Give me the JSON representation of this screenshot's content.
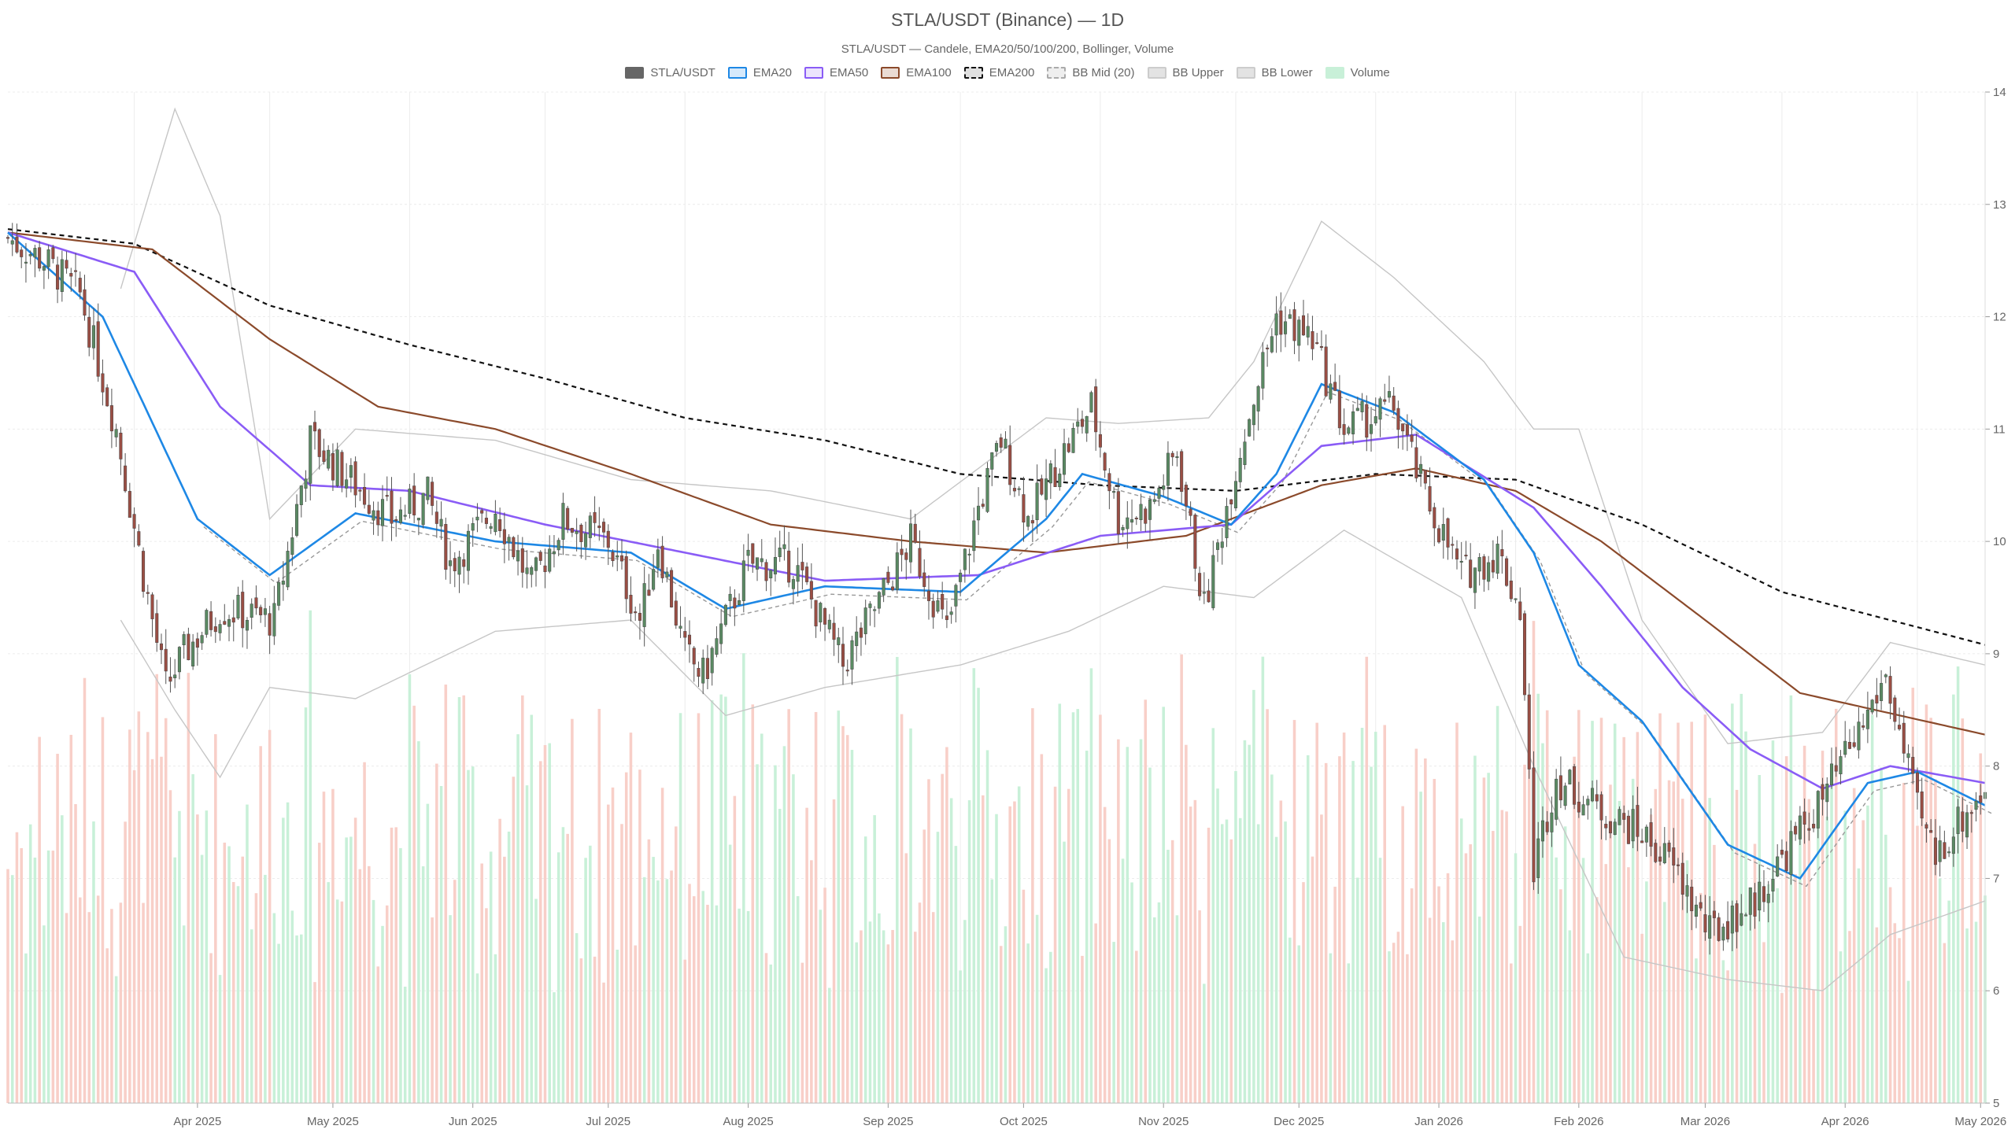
{
  "chart_data": {
    "type": "candlestick",
    "title": "STLA/USDT (Binance) — 1D",
    "subtitle": "STLA/USDT — Candele, EMA20/50/100/200, Bollinger, Volume",
    "legend": [
      {
        "name": "STLA/USDT",
        "color": "#666666",
        "fill": "#666666",
        "style": "solid"
      },
      {
        "name": "EMA20",
        "color": "#1e88e5",
        "fill": "#d6e9fb",
        "style": "solid"
      },
      {
        "name": "EMA50",
        "color": "#8a5cf6",
        "fill": "#ece4fd",
        "style": "solid"
      },
      {
        "name": "EMA100",
        "color": "#8b4a2b",
        "fill": "#eadbd3",
        "style": "solid"
      },
      {
        "name": "EMA200",
        "color": "#111111",
        "fill": "#e0e0e0",
        "style": "dashed"
      },
      {
        "name": "BB Mid (20)",
        "color": "#aaaaaa",
        "fill": "#eeeeee",
        "style": "dashed"
      },
      {
        "name": "BB Upper",
        "color": "#cccccc",
        "fill": "#e3e3e3",
        "style": "solid"
      },
      {
        "name": "BB Lower",
        "color": "#cccccc",
        "fill": "#e3e3e3",
        "style": "solid"
      },
      {
        "name": "Volume",
        "color": "#c8f0d8",
        "fill": "#c8f0d8",
        "style": "solid"
      }
    ],
    "x_ticks": [
      "Apr 2025",
      "May 2025",
      "Jun 2025",
      "Jul 2025",
      "Aug 2025",
      "Sep 2025",
      "Oct 2025",
      "Nov 2025",
      "Dec 2025",
      "Jan 2026",
      "Feb 2026",
      "Mar 2026",
      "Apr 2026",
      "May 2026"
    ],
    "y_ticks": [
      5,
      6,
      7,
      8,
      9,
      10,
      11,
      12,
      13,
      14
    ],
    "ylim": [
      5,
      14
    ],
    "grid": true,
    "legend_position": "top-center",
    "up_color": "#5a8a63",
    "down_color": "#9a4e44",
    "volume_up_color": "#c8f0d8",
    "volume_down_color": "#f8cfc8",
    "date_range": [
      "2025-03-04",
      "2026-05-16"
    ],
    "close_keypoints": [
      [
        "2025-03-04",
        12.7
      ],
      [
        "2025-03-12",
        12.5
      ],
      [
        "2025-03-20",
        12.2
      ],
      [
        "2025-03-28",
        11.0
      ],
      [
        "2025-04-03",
        9.7
      ],
      [
        "2025-04-08",
        8.7
      ],
      [
        "2025-04-12",
        9.0
      ],
      [
        "2025-04-20",
        9.4
      ],
      [
        "2025-05-02",
        9.3
      ],
      [
        "2025-05-10",
        10.9
      ],
      [
        "2025-05-20",
        10.5
      ],
      [
        "2025-05-28",
        10.2
      ],
      [
        "2025-06-05",
        10.4
      ],
      [
        "2025-06-10",
        9.8
      ],
      [
        "2025-06-20",
        10.3
      ],
      [
        "2025-06-28",
        9.6
      ],
      [
        "2025-07-05",
        10.2
      ],
      [
        "2025-07-15",
        10.0
      ],
      [
        "2025-07-22",
        9.3
      ],
      [
        "2025-07-26",
        10.0
      ],
      [
        "2025-08-01",
        9.0
      ],
      [
        "2025-08-05",
        8.8
      ],
      [
        "2025-08-15",
        9.8
      ],
      [
        "2025-08-25",
        9.8
      ],
      [
        "2025-09-05",
        8.9
      ],
      [
        "2025-09-12",
        9.4
      ],
      [
        "2025-09-20",
        10.0
      ],
      [
        "2025-09-28",
        9.2
      ],
      [
        "2025-10-05",
        10.3
      ],
      [
        "2025-10-10",
        10.9
      ],
      [
        "2025-10-16",
        10.2
      ],
      [
        "2025-10-24",
        10.8
      ],
      [
        "2025-10-30",
        11.2
      ],
      [
        "2025-11-05",
        10.2
      ],
      [
        "2025-11-12",
        10.3
      ],
      [
        "2025-11-18",
        10.8
      ],
      [
        "2025-11-24",
        9.4
      ],
      [
        "2025-11-30",
        10.5
      ],
      [
        "2025-12-05",
        11.3
      ],
      [
        "2025-12-10",
        12.0
      ],
      [
        "2025-12-18",
        11.8
      ],
      [
        "2025-12-25",
        11.0
      ],
      [
        "2026-01-05",
        11.2
      ],
      [
        "2026-01-12",
        10.4
      ],
      [
        "2026-01-20",
        9.7
      ],
      [
        "2026-01-28",
        9.9
      ],
      [
        "2026-02-02",
        9.4
      ],
      [
        "2026-02-05",
        7.1
      ],
      [
        "2026-02-10",
        7.9
      ],
      [
        "2026-02-20",
        7.6
      ],
      [
        "2026-03-01",
        7.4
      ],
      [
        "2026-03-08",
        7.1
      ],
      [
        "2026-03-16",
        6.5
      ],
      [
        "2026-03-26",
        6.8
      ],
      [
        "2026-04-03",
        7.3
      ],
      [
        "2026-04-10",
        7.7
      ],
      [
        "2026-04-18",
        8.3
      ],
      [
        "2026-04-24",
        8.8
      ],
      [
        "2026-05-01",
        7.6
      ],
      [
        "2026-05-05",
        7.2
      ],
      [
        "2026-05-10",
        7.5
      ],
      [
        "2026-05-16",
        7.8
      ]
    ],
    "ema20_keypoints": [
      [
        "2025-03-04",
        12.75
      ],
      [
        "2025-03-25",
        12.0
      ],
      [
        "2025-04-15",
        10.2
      ],
      [
        "2025-05-01",
        9.7
      ],
      [
        "2025-05-20",
        10.25
      ],
      [
        "2025-06-20",
        10.0
      ],
      [
        "2025-07-20",
        9.9
      ],
      [
        "2025-08-10",
        9.4
      ],
      [
        "2025-09-01",
        9.6
      ],
      [
        "2025-10-01",
        9.55
      ],
      [
        "2025-10-20",
        10.2
      ],
      [
        "2025-10-28",
        10.6
      ],
      [
        "2025-11-15",
        10.4
      ],
      [
        "2025-11-30",
        10.15
      ],
      [
        "2025-12-10",
        10.6
      ],
      [
        "2025-12-20",
        11.4
      ],
      [
        "2026-01-05",
        11.15
      ],
      [
        "2026-01-25",
        10.55
      ],
      [
        "2026-02-05",
        9.9
      ],
      [
        "2026-02-15",
        8.9
      ],
      [
        "2026-03-01",
        8.4
      ],
      [
        "2026-03-20",
        7.3
      ],
      [
        "2026-04-05",
        7.0
      ],
      [
        "2026-04-20",
        7.85
      ],
      [
        "2026-05-01",
        7.95
      ],
      [
        "2026-05-16",
        7.65
      ]
    ],
    "ema50_keypoints": [
      [
        "2025-03-04",
        12.75
      ],
      [
        "2025-04-01",
        12.4
      ],
      [
        "2025-04-20",
        11.2
      ],
      [
        "2025-05-10",
        10.5
      ],
      [
        "2025-06-01",
        10.45
      ],
      [
        "2025-07-01",
        10.15
      ],
      [
        "2025-08-01",
        9.9
      ],
      [
        "2025-09-01",
        9.65
      ],
      [
        "2025-10-05",
        9.7
      ],
      [
        "2025-11-01",
        10.05
      ],
      [
        "2025-11-30",
        10.15
      ],
      [
        "2025-12-20",
        10.85
      ],
      [
        "2026-01-10",
        10.95
      ],
      [
        "2026-02-05",
        10.3
      ],
      [
        "2026-02-20",
        9.6
      ],
      [
        "2026-03-10",
        8.7
      ],
      [
        "2026-03-25",
        8.15
      ],
      [
        "2026-04-10",
        7.8
      ],
      [
        "2026-04-25",
        8.0
      ],
      [
        "2026-05-16",
        7.85
      ]
    ],
    "ema100_keypoints": [
      [
        "2025-03-04",
        12.75
      ],
      [
        "2025-04-05",
        12.6
      ],
      [
        "2025-05-01",
        11.8
      ],
      [
        "2025-05-25",
        11.2
      ],
      [
        "2025-06-20",
        11.0
      ],
      [
        "2025-07-20",
        10.6
      ],
      [
        "2025-08-20",
        10.15
      ],
      [
        "2025-09-20",
        10.0
      ],
      [
        "2025-10-20",
        9.9
      ],
      [
        "2025-11-20",
        10.05
      ],
      [
        "2025-12-20",
        10.5
      ],
      [
        "2026-01-10",
        10.65
      ],
      [
        "2026-02-01",
        10.45
      ],
      [
        "2026-02-20",
        10.0
      ],
      [
        "2026-03-15",
        9.3
      ],
      [
        "2026-04-05",
        8.65
      ],
      [
        "2026-05-16",
        8.28
      ]
    ],
    "ema200_keypoints": [
      [
        "2025-03-04",
        12.78
      ],
      [
        "2025-04-01",
        12.65
      ],
      [
        "2025-05-01",
        12.1
      ],
      [
        "2025-06-01",
        11.75
      ],
      [
        "2025-07-01",
        11.45
      ],
      [
        "2025-08-01",
        11.1
      ],
      [
        "2025-09-01",
        10.9
      ],
      [
        "2025-10-01",
        10.6
      ],
      [
        "2025-11-01",
        10.5
      ],
      [
        "2025-12-01",
        10.45
      ],
      [
        "2026-01-01",
        10.6
      ],
      [
        "2026-02-01",
        10.55
      ],
      [
        "2026-03-01",
        10.15
      ],
      [
        "2026-04-01",
        9.55
      ],
      [
        "2026-05-16",
        9.08
      ]
    ],
    "bb_upper_keypoints": [
      [
        "2025-03-29",
        12.25
      ],
      [
        "2025-04-10",
        13.85
      ],
      [
        "2025-04-20",
        12.9
      ],
      [
        "2025-05-01",
        10.2
      ],
      [
        "2025-05-20",
        11.0
      ],
      [
        "2025-06-20",
        10.9
      ],
      [
        "2025-07-20",
        10.55
      ],
      [
        "2025-08-20",
        10.45
      ],
      [
        "2025-09-20",
        10.2
      ],
      [
        "2025-10-20",
        11.1
      ],
      [
        "2025-11-05",
        11.05
      ],
      [
        "2025-11-25",
        11.1
      ],
      [
        "2025-12-05",
        11.6
      ],
      [
        "2025-12-20",
        12.85
      ],
      [
        "2026-01-05",
        12.35
      ],
      [
        "2026-01-25",
        11.6
      ],
      [
        "2026-02-05",
        11.0
      ],
      [
        "2026-02-15",
        11.0
      ],
      [
        "2026-03-01",
        9.3
      ],
      [
        "2026-03-20",
        8.2
      ],
      [
        "2026-04-10",
        8.3
      ],
      [
        "2026-04-25",
        9.1
      ],
      [
        "2026-05-16",
        8.9
      ]
    ],
    "bb_lower_keypoints": [
      [
        "2025-03-29",
        9.3
      ],
      [
        "2025-04-10",
        8.5
      ],
      [
        "2025-04-20",
        7.9
      ],
      [
        "2025-05-01",
        8.7
      ],
      [
        "2025-05-20",
        8.6
      ],
      [
        "2025-06-20",
        9.2
      ],
      [
        "2025-07-20",
        9.3
      ],
      [
        "2025-08-10",
        8.45
      ],
      [
        "2025-09-01",
        8.7
      ],
      [
        "2025-10-01",
        8.9
      ],
      [
        "2025-10-25",
        9.2
      ],
      [
        "2025-11-15",
        9.6
      ],
      [
        "2025-12-05",
        9.5
      ],
      [
        "2025-12-25",
        10.1
      ],
      [
        "2026-01-20",
        9.5
      ],
      [
        "2026-02-05",
        8.0
      ],
      [
        "2026-02-25",
        6.3
      ],
      [
        "2026-03-20",
        6.1
      ],
      [
        "2026-04-10",
        6.0
      ],
      [
        "2026-04-25",
        6.5
      ],
      [
        "2026-05-16",
        6.8
      ]
    ],
    "volume_scale": [
      0,
      100
    ]
  }
}
